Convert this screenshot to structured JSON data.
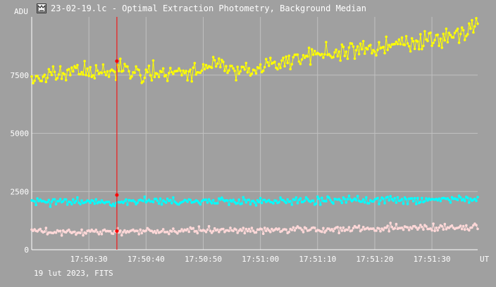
{
  "window": {
    "title": "23-02-19.lc - Optimal Extraction Photometry, Background Median",
    "icon": "photometry-app-icon",
    "footer": "19 lut 2023, FITS"
  },
  "chart_data": {
    "type": "line",
    "title": "23-02-19.lc - Optimal Extraction Photometry, Background Median",
    "ylabel": "ADU",
    "xlabel": "UT",
    "xlim": [
      "17:50:20",
      "17:51:38"
    ],
    "ylim": [
      0,
      10000
    ],
    "x_ticks": [
      "17:50:30",
      "17:50:40",
      "17:50:50",
      "17:51:00",
      "17:51:10",
      "17:51:20",
      "17:51:30"
    ],
    "y_ticks": [
      0,
      2500,
      5000,
      7500
    ],
    "grid": true,
    "cursor": {
      "x": "17:50:34.9",
      "color": "#ff0000",
      "markers": [
        8100,
        2350,
        800
      ]
    },
    "colors": {
      "background": "#a0a0a0",
      "grid": "#c0c0c0",
      "axis": "#ffffff"
    },
    "series": [
      {
        "color": "#ffff00",
        "start": "17:50:20",
        "end": "17:51:38",
        "step_s": 0.25,
        "anchors": [
          {
            "x": "17:50:20",
            "y": 7300
          },
          {
            "x": "17:50:24",
            "y": 7500
          },
          {
            "x": "17:50:28",
            "y": 7700
          },
          {
            "x": "17:50:32",
            "y": 7600
          },
          {
            "x": "17:50:36",
            "y": 7800
          },
          {
            "x": "17:50:40",
            "y": 7500
          },
          {
            "x": "17:50:44",
            "y": 7700
          },
          {
            "x": "17:50:48",
            "y": 7600
          },
          {
            "x": "17:50:52",
            "y": 7900
          },
          {
            "x": "17:50:56",
            "y": 7700
          },
          {
            "x": "17:51:00",
            "y": 7800
          },
          {
            "x": "17:51:04",
            "y": 8000
          },
          {
            "x": "17:51:08",
            "y": 8300
          },
          {
            "x": "17:51:12",
            "y": 8500
          },
          {
            "x": "17:51:16",
            "y": 8600
          },
          {
            "x": "17:51:20",
            "y": 8600
          },
          {
            "x": "17:51:24",
            "y": 8800
          },
          {
            "x": "17:51:28",
            "y": 9000
          },
          {
            "x": "17:51:32",
            "y": 9100
          },
          {
            "x": "17:51:36",
            "y": 9400
          },
          {
            "x": "17:51:38",
            "y": 9600
          }
        ],
        "scatter": 300,
        "seed": 11
      },
      {
        "color": "#00ffff",
        "start": "17:50:20",
        "end": "17:51:38",
        "step_s": 0.25,
        "anchors": [
          {
            "x": "17:50:20",
            "y": 2050
          },
          {
            "x": "17:51:38",
            "y": 2150
          }
        ],
        "scatter": 130,
        "seed": 23,
        "spikes": [
          {
            "x": "17:51:22.8",
            "y": 2300
          }
        ]
      },
      {
        "color": "#ffd8d8",
        "start": "17:50:20",
        "end": "17:51:38",
        "step_s": 0.25,
        "anchors": [
          {
            "x": "17:50:20",
            "y": 750
          },
          {
            "x": "17:51:38",
            "y": 950
          }
        ],
        "scatter": 110,
        "seed": 37,
        "spikes": [
          {
            "x": "17:51:22.8",
            "y": 1150
          }
        ]
      }
    ]
  }
}
